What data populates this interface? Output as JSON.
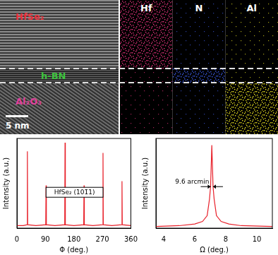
{
  "tem_panel": {
    "layers": [
      {
        "label": "HfSe₂",
        "color": "#e8303a"
      },
      {
        "label": "h-BN",
        "color": "#3ec43e"
      },
      {
        "label": "Al₂O₃",
        "color": "#e0409a"
      }
    ],
    "scale_bar": "5 nm",
    "eds_maps": [
      {
        "label": "Hf",
        "color": "#e0307a"
      },
      {
        "label": "N",
        "color": "#3a5ae8"
      },
      {
        "label": "Al",
        "color": "#e8e020"
      }
    ]
  },
  "chart_data": [
    {
      "type": "line",
      "x_label": "Φ (deg.)",
      "y_label": "Intensity (a.u.)",
      "x": [
        0,
        20,
        32,
        33,
        34,
        60,
        91,
        92,
        93,
        120,
        151,
        152,
        153,
        180,
        211,
        212,
        213,
        240,
        271,
        272,
        273,
        300,
        331,
        332,
        333,
        360
      ],
      "values": [
        0.03,
        0.03,
        0.04,
        0.9,
        0.04,
        0.03,
        0.04,
        0.5,
        0.04,
        0.03,
        0.04,
        1.0,
        0.04,
        0.03,
        0.04,
        0.5,
        0.04,
        0.03,
        0.04,
        0.88,
        0.04,
        0.03,
        0.04,
        0.55,
        0.04,
        0.03
      ],
      "color": "#e8202a",
      "xlim": [
        0,
        360
      ],
      "xticks": [
        0,
        90,
        180,
        270,
        360
      ],
      "ylim": [
        0,
        1.05
      ],
      "tick_labels": "x",
      "grid": false,
      "annotation": {
        "text": "HfSe₂ (101̄1)",
        "x": [
          92,
          272
        ],
        "y": 0.42
      }
    },
    {
      "type": "line",
      "x_label": "Ω (deg.)",
      "y_label": "Intensity (a.u.)",
      "x": [
        3.5,
        5,
        6,
        6.5,
        6.8,
        6.95,
        7.02,
        7.1,
        7.18,
        7.25,
        7.4,
        7.7,
        8.2,
        9,
        11
      ],
      "values": [
        0.02,
        0.03,
        0.05,
        0.08,
        0.15,
        0.35,
        0.5,
        1.0,
        0.5,
        0.35,
        0.15,
        0.08,
        0.05,
        0.03,
        0.02
      ],
      "color": "#e8202a",
      "xlim": [
        3.5,
        11
      ],
      "xticks": [
        4,
        6,
        8,
        10
      ],
      "ylim": [
        0,
        1.08
      ],
      "tick_labels": "x",
      "grid": false,
      "annotation": {
        "text": "9.6 arcmin",
        "x": [
          7.02,
          7.18
        ],
        "y": 0.5
      }
    }
  ]
}
